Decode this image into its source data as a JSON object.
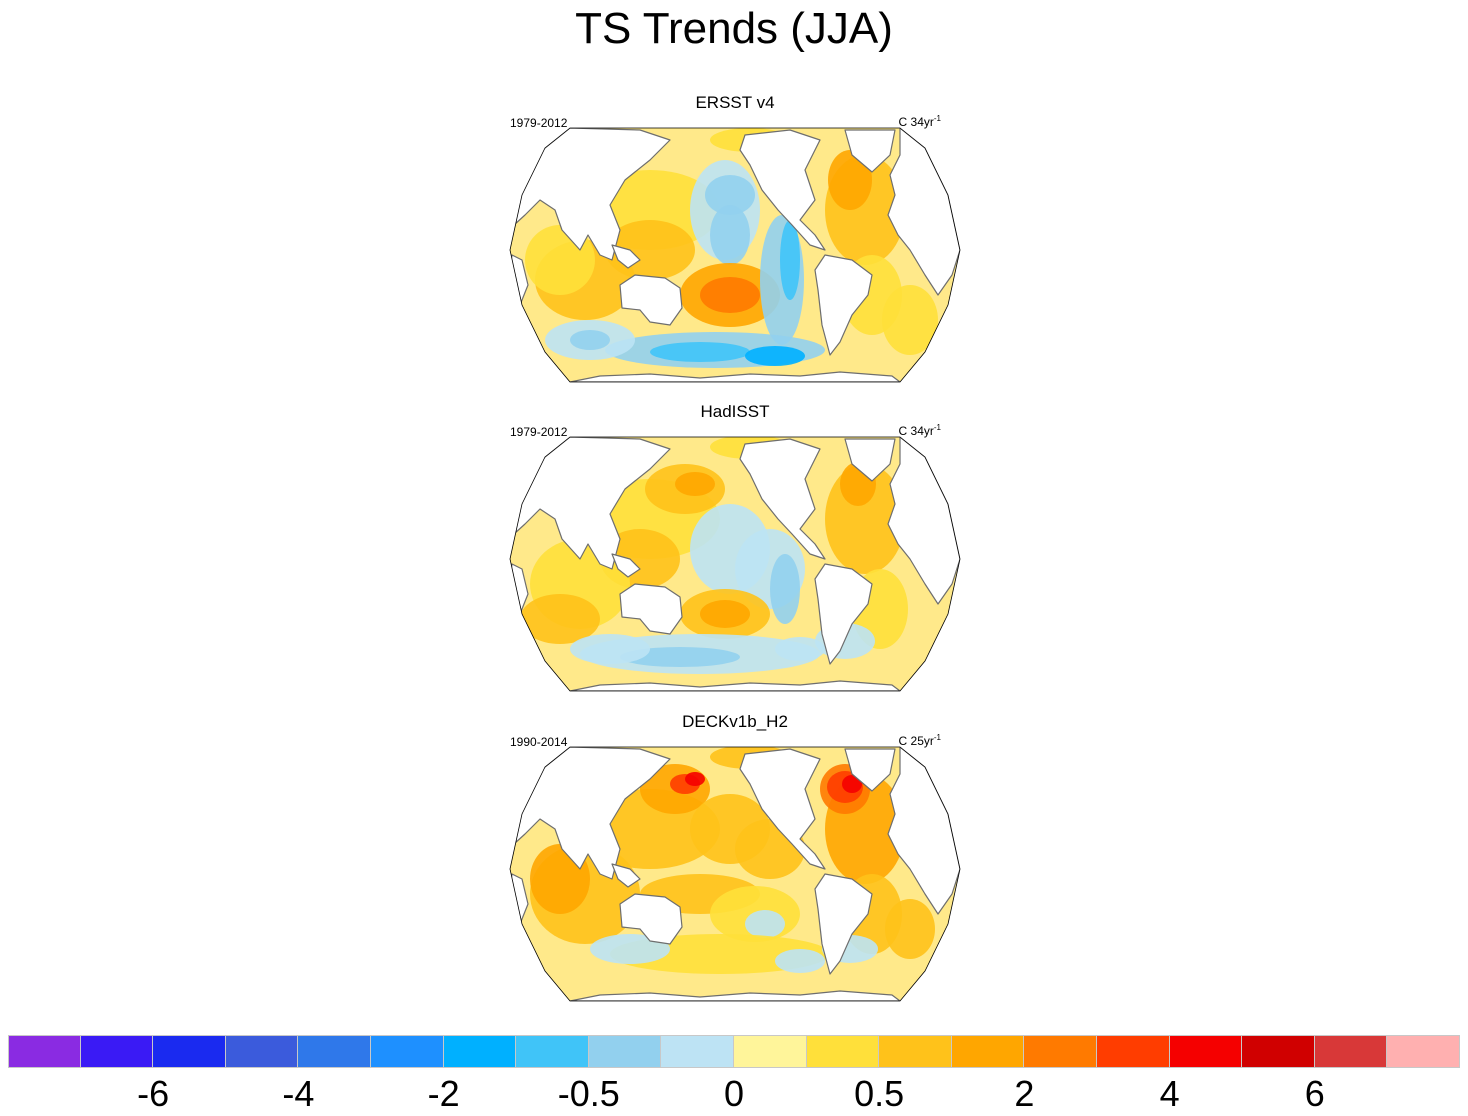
{
  "figure": {
    "title": "TS Trends (JJA)"
  },
  "panels": [
    {
      "name": "ERSST v4",
      "period": "1979-2012",
      "units_prefix": "C 34yr",
      "units_exp": "-1",
      "style": "ersst"
    },
    {
      "name": "HadISST",
      "period": "1979-2012",
      "units_prefix": "C 34yr",
      "units_exp": "-1",
      "style": "hadisst"
    },
    {
      "name": "DECKv1b_H2",
      "period": "1990-2014",
      "units_prefix": "C 25yr",
      "units_exp": "-1",
      "style": "deck"
    }
  ],
  "colorbar": {
    "colors": [
      "#8a2be2",
      "#3a1af5",
      "#1a2af0",
      "#3b5bdc",
      "#2f78ea",
      "#1e90ff",
      "#00b0ff",
      "#40c4f8",
      "#92d0ee",
      "#bde3f4",
      "#fff59a",
      "#ffe03a",
      "#ffc21a",
      "#ffa600",
      "#ff7a00",
      "#ff3d00",
      "#f50000",
      "#d00000",
      "#d83838",
      "#ffb0b0"
    ],
    "tick_labels": [
      "-6",
      "-4",
      "-2",
      "-0.5",
      "0",
      "0.5",
      "2",
      "4",
      "6"
    ],
    "tick_box_boundaries": [
      2,
      4,
      6,
      8,
      10,
      12,
      14,
      16,
      18
    ]
  },
  "colors": {
    "land": "#ffffff",
    "coast": "#6e6e6e",
    "background_ocean": "#ffe98a"
  }
}
